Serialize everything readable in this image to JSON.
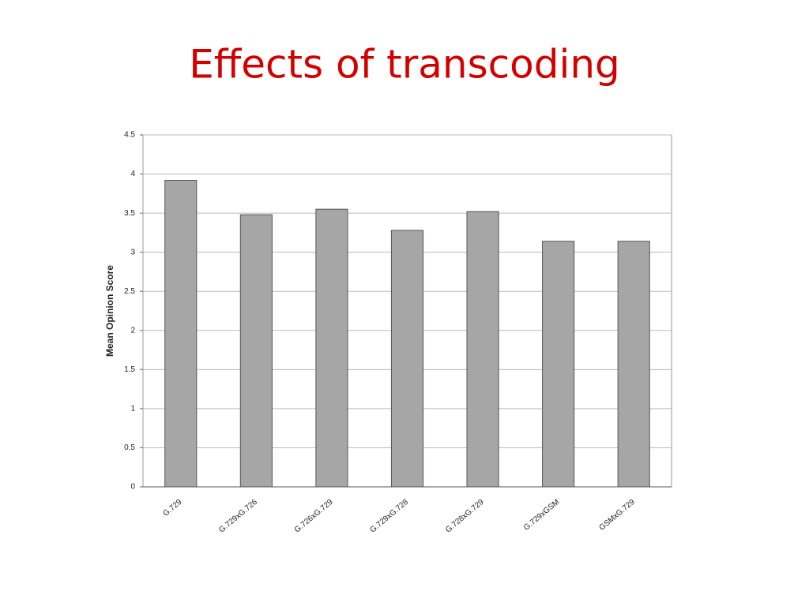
{
  "chart_data": {
    "type": "bar",
    "title": "Effects of transcoding",
    "y_label": "Mean Opinion Score",
    "categories": [
      "G.729",
      "G.729xG.726",
      "G.726xG.729",
      "G.729xG.728",
      "G.728xG.729",
      "G.729xGSM",
      "GSMxG.729"
    ],
    "values": [
      3.92,
      3.48,
      3.55,
      3.28,
      3.52,
      3.14,
      3.14
    ],
    "color": "#a6a6a6",
    "ylim": [
      0,
      4.5
    ],
    "yticks": [
      0,
      0.5,
      1,
      1.5,
      2,
      2.5,
      3,
      3.5,
      4,
      4.5
    ],
    "grid": true
  }
}
